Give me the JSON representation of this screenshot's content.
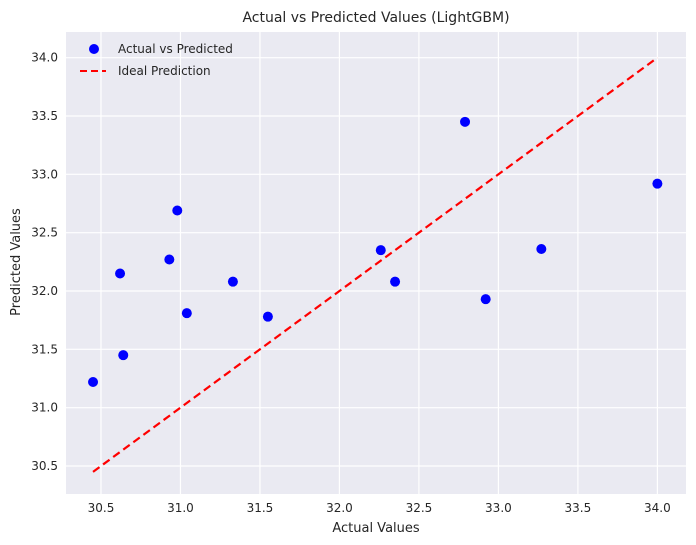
{
  "chart_data": {
    "type": "scatter",
    "title": "Actual vs Predicted Values (LightGBM)",
    "xlabel": "Actual Values",
    "ylabel": "Predicted Values",
    "xlim": [
      30.28,
      34.18
    ],
    "ylim": [
      30.26,
      34.22
    ],
    "xticks": [
      30.5,
      31.0,
      31.5,
      32.0,
      32.5,
      33.0,
      33.5,
      34.0
    ],
    "yticks": [
      30.5,
      31.0,
      31.5,
      32.0,
      32.5,
      33.0,
      33.5,
      34.0
    ],
    "grid": true,
    "legend_position": "top-left",
    "series": [
      {
        "name": "Actual vs Predicted",
        "kind": "scatter",
        "color": "#0000ff",
        "points": [
          {
            "x": 30.45,
            "y": 31.22
          },
          {
            "x": 30.62,
            "y": 32.15
          },
          {
            "x": 30.64,
            "y": 31.45
          },
          {
            "x": 30.93,
            "y": 32.27
          },
          {
            "x": 30.98,
            "y": 32.69
          },
          {
            "x": 31.04,
            "y": 31.81
          },
          {
            "x": 31.33,
            "y": 32.08
          },
          {
            "x": 31.55,
            "y": 31.78
          },
          {
            "x": 32.26,
            "y": 32.35
          },
          {
            "x": 32.35,
            "y": 32.08
          },
          {
            "x": 32.79,
            "y": 33.45
          },
          {
            "x": 32.92,
            "y": 31.93
          },
          {
            "x": 33.27,
            "y": 32.36
          },
          {
            "x": 34.0,
            "y": 32.92
          }
        ]
      },
      {
        "name": "Ideal Prediction",
        "kind": "line",
        "style": "dashed",
        "color": "#ff0000",
        "points": [
          {
            "x": 30.45,
            "y": 30.45
          },
          {
            "x": 34.0,
            "y": 34.0
          }
        ]
      }
    ]
  }
}
